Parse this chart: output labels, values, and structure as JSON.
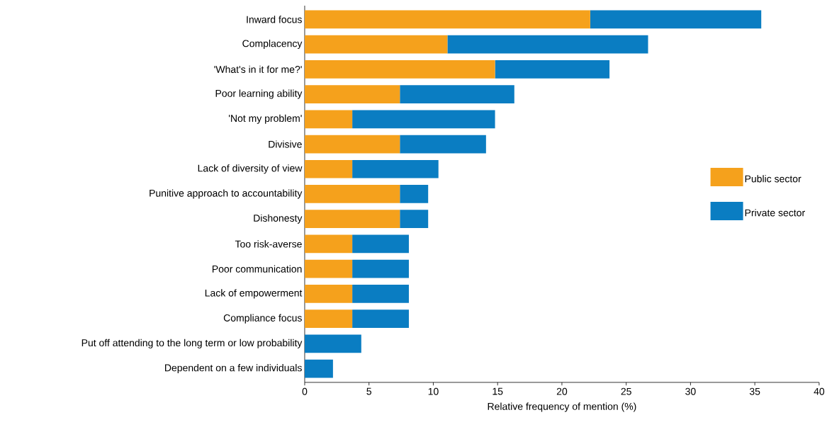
{
  "chart_data": {
    "type": "bar",
    "orientation": "horizontal",
    "stacked": true,
    "xlabel": "Relative frequency of mention (%)",
    "categories": [
      "Inward focus",
      "Complacency",
      "'What's in it for me?'",
      "Poor learning ability",
      "'Not my problem'",
      "Divisive",
      "Lack of diversity of view",
      "Punitive approach to accountability",
      "Dishonesty",
      "Too risk-averse",
      "Poor communication",
      "Lack of empowerment",
      "Compliance focus",
      "Put off attending to the long term or low probability",
      "Dependent on a few individuals"
    ],
    "series": [
      {
        "name": "Public sector",
        "color": "#f5a11c",
        "values": [
          22.2,
          11.1,
          14.8,
          7.4,
          3.7,
          7.4,
          3.7,
          7.4,
          7.4,
          3.7,
          3.7,
          3.7,
          3.7,
          0,
          0
        ]
      },
      {
        "name": "Private sector",
        "color": "#0a7dc2",
        "values": [
          13.3,
          15.6,
          8.9,
          8.9,
          11.1,
          6.7,
          6.7,
          2.2,
          2.2,
          4.4,
          4.4,
          4.4,
          4.4,
          4.4,
          2.2
        ]
      }
    ],
    "xlim": [
      0,
      40
    ],
    "xticks": [
      0,
      5,
      10,
      15,
      20,
      25,
      30,
      35,
      40
    ],
    "legend": "right",
    "grid": false
  }
}
